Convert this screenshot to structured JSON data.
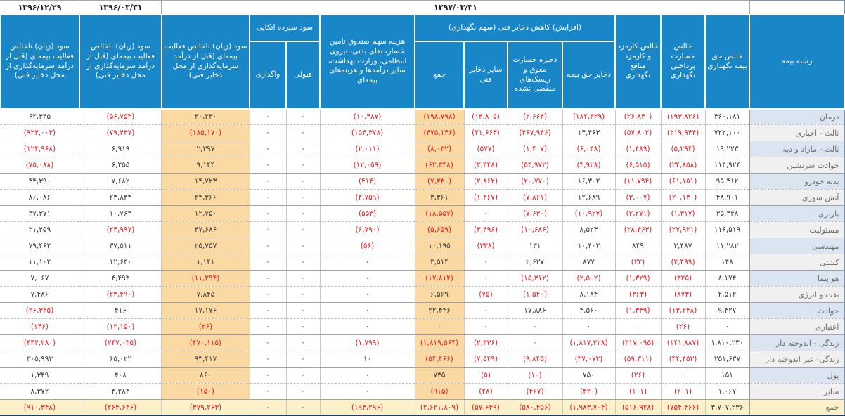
{
  "colors": {
    "header_bg": "#1886c7",
    "negative_text": "#ed1c24",
    "positive_text": "#3c3c3c",
    "highlight_column": "#fbd9a3",
    "total_row_bg": "#fdf1ca",
    "label_alt_blue": "#dbe5f1",
    "label_alt_gray": "#f0f0f0"
  },
  "table": {
    "dates": {
      "y1397": "۱۳۹۷/۰۳/۳۱",
      "y1396_03": "۱۳۹۶/۰۳/۳۱",
      "y1396_12": "۱۳۹۶/۱۲/۲۹"
    },
    "headers": {
      "line": "رشته بیمه",
      "net_premium": "خالص حق بیمه نگهداری",
      "net_claims": "خالص خسارت پرداختی نگهداری",
      "net_commission": "خالص کارمزد و کارمزد منافع نگهداری",
      "reserves_group": "(افزایش) کاهش ذخایر فنی (سهم نگهداری)",
      "premium_reserve": "ذخایر حق بیمه",
      "outstanding_claims_reserve": "ذخیره خسارت معوق و ریسک‌های منقضی نشده",
      "other_technical_reserves": "سایر ذخایر فنی",
      "reserves_total": "جمع",
      "fund_expense": "هزینه سهم صندوق تامین خسارت‌های بدنی، نیروی انتظامی، وزارت بهداشت، سایر درآمدها و هزینه‌های بیمه‌ای",
      "reinsurance_deposit_group": "سود سپرده اتکایی",
      "accepted": "قبولی",
      "ceded": "واگذاری",
      "gross_profit": "سود (زیان) ناخالص فعالیت بیمه‌ای (قبل از درآمد سرمایه‌گذاری از محل ذخایر فنی)"
    },
    "column_order": [
      "net_premium",
      "net_claims",
      "net_commission",
      "premium_reserve",
      "outstanding_claims_reserve",
      "other_technical_reserves",
      "reserves_total",
      "fund_expense",
      "accepted",
      "ceded",
      "gross_profit_1397",
      "gross_profit_1396_03",
      "gross_profit_1396_12"
    ],
    "rows": [
      {
        "label": "درمان",
        "values": [
          "۴۶۰,۱۸۱",
          "(۱۹۳,۸۲۶)",
          "(۲۶,۸۴۰)",
          "(۱۸۲,۳۲۹)",
          "(۲,۶۶۴)",
          "(۱۳,۸۰۵)",
          "(۱۹۸,۷۹۸)",
          "(۱۰,۴۸۷)",
          "۰",
          "۰",
          "۳۰,۲۳۰",
          "(۵۶,۷۵۳)",
          "۶۲,۳۴۵"
        ]
      },
      {
        "label": "ثالث - اجباری",
        "values": [
          "۷۲۲,۱۰۰",
          "(۲۱۹,۹۴۴)",
          "(۵۷,۸۰۲)",
          "۱۴,۴۶۳",
          "(۴۶۷,۹۴۶)",
          "(۲۱,۶۶۳)",
          "(۴۷۵,۱۴۶)",
          "(۱۵۴,۳۷۸)",
          "۰",
          "۰",
          "(۱۸۵,۱۷۰)",
          "(۷۹,۴۳۷)",
          "(۹۲۴,۰۰۳)"
        ]
      },
      {
        "label": "ثالث - مازاد و دیه",
        "values": [
          "۱۹,۲۲۳",
          "(۵,۲۹۴)",
          "(۱,۴۸۹)",
          "(۶,۰۴۸)",
          "(۱,۴۰۷)",
          "(۵۷۷)",
          "(۸,۰۳۲)",
          "(۲,۰۱۱)",
          "۰",
          "۰",
          "۲,۳۹۷",
          "۶,۹۱۹",
          "(۱۲۴,۹۶۸)"
        ]
      },
      {
        "label": "حوادث سرنشین",
        "values": [
          "۱۱۴,۹۲۴",
          "(۲۴,۸۵۸)",
          "(۶,۵۱۵)",
          "(۳,۹۲۸)",
          "(۵۴,۹۷۲)",
          "(۳,۴۴۸)",
          "(۶۲,۳۴۸)",
          "(۱۲,۰۵۹)",
          "۰",
          "۰",
          "۹,۱۴۴",
          "۶,۲۵۵",
          "(۷۵,۰۸۸)"
        ]
      },
      {
        "label": "بدنه خودرو",
        "values": [
          "۹۵,۴۱۲",
          "(۶۱,۱۵۱)",
          "(۱۱,۷۹۴)",
          "۱۶,۳۰۲",
          "(۲۰,۷۷۰)",
          "(۲,۸۶۲)",
          "(۷,۳۳۰)",
          "(۴۱۴)",
          "۰",
          "۰",
          "۱۴,۷۲۳",
          "۷,۶۸۲",
          "۴۴,۳۹۰"
        ]
      },
      {
        "label": "آتش سوزی",
        "values": [
          "۴۸,۹۰۱",
          "(۲۰,۱۳۰)",
          "(۳,۰۰۷)",
          "۱۲,۶۸۹",
          "(۷,۸۶۱)",
          "(۱,۴۶۷)",
          "۳,۳۶۱",
          "(۴,۷۵۹)",
          "۰",
          "۰",
          "۲۴,۳۶۶",
          "۲۳,۸۳۳",
          "۸۶,۰۸۶"
        ]
      },
      {
        "label": "باربری",
        "values": [
          "۳۵,۴۴۸",
          "(۱,۳۱۷)",
          "(۲,۲۷۱)",
          "(۱۰,۹۲۷)",
          "(۷,۶۳۰)",
          "۰",
          "(۱۸,۵۵۷)",
          "(۵۵۳)",
          "۰",
          "۰",
          "۱۲,۷۵۰",
          "۱۰,۷۶۴",
          "۴۷,۳۷۱"
        ]
      },
      {
        "label": "مسئولیت",
        "values": [
          "۱۱۶,۵۱۹",
          "(۲۷,۹۲۱)",
          "(۲۸,۴۶۳)",
          "۸,۵۲۳",
          "(۱۰,۶۸۶)",
          "(۳,۴۹۶)",
          "(۵,۶۵۹)",
          "(۶,۷۹۰)",
          "۰",
          "۰",
          "۴۷,۶۸۶",
          "(۲۴,۹۹۷)",
          "۲۱,۴۵۹"
        ]
      },
      {
        "label": "مهندسی",
        "values": [
          "۱۱,۲۸۲",
          "۳,۴۸۷",
          "۸۴۹",
          "۱۰,۴۰۲",
          "۱۳۱",
          "(۳۳۸)",
          "۱۰,۱۹۵",
          "(۵۶)",
          "۰",
          "۰",
          "۲۵,۷۵۷",
          "۳۷,۵۱۱",
          "۷۹,۴۶۲"
        ]
      },
      {
        "label": "کشتی",
        "values": [
          "۱۴۸",
          "(۲,۴۹۹)",
          "(۲۲)",
          "۸۷۷",
          "۲,۶۳۷",
          "۰",
          "۳,۵۱۴",
          "۰",
          "۰",
          "۰",
          "۱,۱۴۱",
          "۱۲,۶۴۰",
          "۱۱,۱۰۲"
        ]
      },
      {
        "label": "هواپیما",
        "values": [
          "۸,۱۷۴",
          "(۳۲۵)",
          "(۱,۳۲۹)",
          "(۲,۵۰۲)",
          "(۱۵,۳۱۲)",
          "۰",
          "(۱۷,۸۱۴)",
          "۰",
          "۰",
          "۰",
          "(۱۱,۲۹۴)",
          "۴,۴۹۳",
          "۷,۰۶۷"
        ]
      },
      {
        "label": "نفت و انرژی",
        "values": [
          "۲,۵۱۲",
          "(۸۷۳)",
          "(۳۶۳)",
          "۸,۱۸۴",
          "(۱,۵۴۰)",
          "(۷۵)",
          "۶,۵۶۹",
          "۰",
          "۰",
          "۰",
          "۷,۸۴۵",
          "(۲۳,۴۹۰)",
          "۷,۴۸۶"
        ]
      },
      {
        "label": "حوادث",
        "values": [
          "۹,۳۲۷",
          "(۱۳,۲۴۸)",
          "(۱,۳۴۹)",
          "۴,۵۶۰",
          "۱۷,۸۸۶",
          "۰",
          "۲۲,۴۴۶",
          "۰",
          "۰",
          "۰",
          "۱۷,۱۷۶",
          "۴۱۶",
          "(۲۶,۳۴۵)"
        ]
      },
      {
        "label": "اعتباری",
        "values": [
          "۰",
          "(۲۶)",
          "۰",
          "۰",
          "۰",
          "۰",
          "۰",
          "۰",
          "۰",
          "۰",
          "(۲۶)",
          "(۱۲,۱۵۰)",
          "(۱۴۶)"
        ]
      },
      {
        "label": "زندگی - اندوخته دار",
        "values": [
          "۱,۸۱۰,۲۳۰",
          "(۱۴۱,۸۸۷)",
          "(۳۱۷,۰۹۵)",
          "(۱,۸۱۷,۲۲۸)",
          "۰",
          "(۲,۳۳۶)",
          "(۱,۸۱۹,۵۶۴)",
          "(۱,۷۹۹)",
          "۰",
          "۰",
          "(۴۷۰,۱۱۵)",
          "(۲۴۷,۰۳۵)",
          "(۴۴۲,۲۸۰)"
        ]
      },
      {
        "label": "زندگی- غیر اندوخته دار",
        "values": [
          "۲۵۱,۶۳۷",
          "(۴۴,۴۵۳)",
          "(۵۹,۳۱۱)",
          "(۳۷,۰۷۲)",
          "(۹,۸۴۵)",
          "(۷,۵۴۹)",
          "(۵۴,۴۶۶)",
          "۱۰",
          "۰",
          "۰",
          "۹۳,۴۱۷",
          "۶۵,۰۲۲",
          "۳۰۵,۹۹۳"
        ]
      },
      {
        "label": "پول",
        "values": [
          "۱۵۱",
          "۰",
          "(۲۶)",
          "۷۵۰",
          "(۱۰)",
          "(۵)",
          "۷۳۵",
          "۰",
          "۰",
          "۰",
          "۸۶۰",
          "۴۰۸",
          "۱,۳۴۹"
        ]
      },
      {
        "label": "سایر",
        "values": [
          "۱,۰۶۷",
          "(۲۰۱)",
          "(۱۰۱)",
          "(۴۲۰)",
          "(۴۶۷)",
          "(۲۸)",
          "(۹۱۵)",
          "۰",
          "۰",
          "۰",
          "(۱۵۰)",
          "۳,۲۸۳",
          "۸,۳۷۲"
        ]
      },
      {
        "label": "جمع",
        "is_total": true,
        "values": [
          "۳,۷۰۷,۲۳۶",
          "(۷۵۴,۴۶۶)",
          "(۵۱۶,۹۲۸)",
          "(۱,۹۸۳,۷۰۴)",
          "(۵۸۰,۴۵۶)",
          "(۵۷,۶۴۹)",
          "(۲,۶۲۱,۸۰۹)",
          "(۱۹۳,۲۹۶)",
          "۰",
          "۰",
          "(۳۷۹,۲۶۳)",
          "(۲۶۴,۶۳۶)",
          "(۹۱۰,۳۴۸)"
        ]
      }
    ]
  }
}
